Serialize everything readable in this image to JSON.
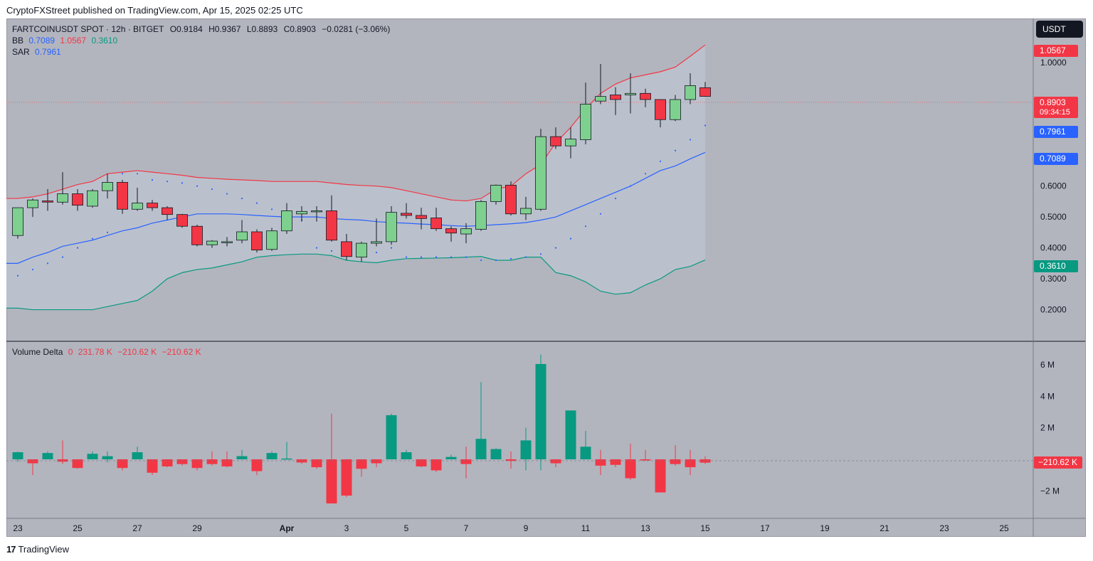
{
  "header": {
    "published": "CryptoFXStreet published on TradingView.com, Apr 15, 2025 02:25 UTC"
  },
  "legend": {
    "symbol": "FARTCOINUSDT SPOT · 12h · BITGET",
    "open": "O0.9184",
    "high": "H0.9367",
    "low": "L0.8893",
    "close": "C0.8903",
    "change": "−0.0281 (−3.06%)",
    "bb_label": "BB",
    "bb_mid": "0.7089",
    "bb_upper": "1.0567",
    "bb_lower": "0.3610",
    "sar_label": "SAR",
    "sar_value": "0.7961",
    "vd_label": "Volume Delta",
    "vd_v1": "0",
    "vd_v2": "231.78 K",
    "vd_v3": "−210.62 K",
    "vd_v4": "−210.62 K"
  },
  "currency": "USDT",
  "price_tags": {
    "upper": "1.0567",
    "last": "0.8903",
    "countdown": "09:34:15",
    "sar": "0.7961",
    "mid": "0.7089",
    "lower": "0.3610",
    "vd": "−210.62 K"
  },
  "colors": {
    "bull": "#7ed08f",
    "bear": "#f23645",
    "delta_up": "#089981",
    "delta_down": "#f23645",
    "bb_upper": "#f23645",
    "bb_mid": "#2962ff",
    "bb_lower": "#089981",
    "sar": "#2962ff",
    "bg": "#b2b5be",
    "band_fill": "#bcc3cf"
  },
  "footer": {
    "brand": "TradingView",
    "logo": "17"
  },
  "chart_data": {
    "type": "candlestick",
    "title": "FARTCOINUSDT SPOT · 12h · BITGET",
    "price_axis": {
      "ticks": [
        0.2,
        0.3,
        0.4,
        0.5,
        0.6,
        1.0
      ],
      "labels": [
        "0.2000",
        "0.3000",
        "0.4000",
        "0.5000",
        "0.6000",
        "1.0000"
      ],
      "range": [
        0.1,
        1.14
      ]
    },
    "volume_axis": {
      "ticks": [
        6000000,
        4000000,
        2000000,
        -2000000
      ],
      "labels": [
        "6 M",
        "4 M",
        "2 M",
        "−2 M"
      ],
      "range": [
        -3700000,
        7400000
      ]
    },
    "x_ticks": [
      {
        "i": 0,
        "label": "23"
      },
      {
        "i": 4,
        "label": "25"
      },
      {
        "i": 8,
        "label": "27"
      },
      {
        "i": 12,
        "label": "29"
      },
      {
        "i": 18,
        "label": "Apr"
      },
      {
        "i": 22,
        "label": "3"
      },
      {
        "i": 26,
        "label": "5"
      },
      {
        "i": 30,
        "label": "7"
      },
      {
        "i": 34,
        "label": "9"
      },
      {
        "i": 38,
        "label": "11"
      },
      {
        "i": 42,
        "label": "13"
      },
      {
        "i": 46,
        "label": "15"
      },
      {
        "i": 50,
        "label": "17"
      },
      {
        "i": 54,
        "label": "19"
      },
      {
        "i": 58,
        "label": "21"
      },
      {
        "i": 62,
        "label": "23"
      },
      {
        "i": 66,
        "label": "25"
      }
    ],
    "candles": [
      {
        "o": 0.44,
        "h": 0.53,
        "l": 0.43,
        "c": 0.53
      },
      {
        "o": 0.53,
        "h": 0.56,
        "l": 0.5,
        "c": 0.555
      },
      {
        "o": 0.552,
        "h": 0.59,
        "l": 0.52,
        "c": 0.548
      },
      {
        "o": 0.548,
        "h": 0.645,
        "l": 0.54,
        "c": 0.575
      },
      {
        "o": 0.575,
        "h": 0.59,
        "l": 0.52,
        "c": 0.538
      },
      {
        "o": 0.535,
        "h": 0.59,
        "l": 0.53,
        "c": 0.585
      },
      {
        "o": 0.585,
        "h": 0.64,
        "l": 0.56,
        "c": 0.612
      },
      {
        "o": 0.612,
        "h": 0.62,
        "l": 0.51,
        "c": 0.525
      },
      {
        "o": 0.525,
        "h": 0.595,
        "l": 0.52,
        "c": 0.545
      },
      {
        "o": 0.545,
        "h": 0.555,
        "l": 0.52,
        "c": 0.53
      },
      {
        "o": 0.53,
        "h": 0.535,
        "l": 0.49,
        "c": 0.508
      },
      {
        "o": 0.508,
        "h": 0.51,
        "l": 0.465,
        "c": 0.47
      },
      {
        "o": 0.47,
        "h": 0.475,
        "l": 0.405,
        "c": 0.41
      },
      {
        "o": 0.41,
        "h": 0.425,
        "l": 0.4,
        "c": 0.422
      },
      {
        "o": 0.417,
        "h": 0.435,
        "l": 0.405,
        "c": 0.42
      },
      {
        "o": 0.425,
        "h": 0.49,
        "l": 0.415,
        "c": 0.452
      },
      {
        "o": 0.452,
        "h": 0.46,
        "l": 0.385,
        "c": 0.393
      },
      {
        "o": 0.395,
        "h": 0.465,
        "l": 0.39,
        "c": 0.455
      },
      {
        "o": 0.455,
        "h": 0.545,
        "l": 0.445,
        "c": 0.52
      },
      {
        "o": 0.51,
        "h": 0.535,
        "l": 0.485,
        "c": 0.518
      },
      {
        "o": 0.519,
        "h": 0.535,
        "l": 0.485,
        "c": 0.52
      },
      {
        "o": 0.52,
        "h": 0.57,
        "l": 0.42,
        "c": 0.425
      },
      {
        "o": 0.42,
        "h": 0.445,
        "l": 0.36,
        "c": 0.372
      },
      {
        "o": 0.37,
        "h": 0.42,
        "l": 0.355,
        "c": 0.415
      },
      {
        "o": 0.415,
        "h": 0.495,
        "l": 0.405,
        "c": 0.42
      },
      {
        "o": 0.42,
        "h": 0.535,
        "l": 0.41,
        "c": 0.515
      },
      {
        "o": 0.512,
        "h": 0.545,
        "l": 0.495,
        "c": 0.505
      },
      {
        "o": 0.505,
        "h": 0.53,
        "l": 0.46,
        "c": 0.495
      },
      {
        "o": 0.497,
        "h": 0.53,
        "l": 0.455,
        "c": 0.462
      },
      {
        "o": 0.462,
        "h": 0.47,
        "l": 0.42,
        "c": 0.448
      },
      {
        "o": 0.445,
        "h": 0.48,
        "l": 0.415,
        "c": 0.462
      },
      {
        "o": 0.46,
        "h": 0.555,
        "l": 0.455,
        "c": 0.55
      },
      {
        "o": 0.55,
        "h": 0.605,
        "l": 0.54,
        "c": 0.603
      },
      {
        "o": 0.603,
        "h": 0.615,
        "l": 0.505,
        "c": 0.51
      },
      {
        "o": 0.51,
        "h": 0.565,
        "l": 0.49,
        "c": 0.528
      },
      {
        "o": 0.525,
        "h": 0.785,
        "l": 0.52,
        "c": 0.76
      },
      {
        "o": 0.76,
        "h": 0.79,
        "l": 0.72,
        "c": 0.73
      },
      {
        "o": 0.73,
        "h": 0.79,
        "l": 0.69,
        "c": 0.752
      },
      {
        "o": 0.75,
        "h": 0.935,
        "l": 0.735,
        "c": 0.865
      },
      {
        "o": 0.875,
        "h": 0.995,
        "l": 0.865,
        "c": 0.89
      },
      {
        "o": 0.895,
        "h": 0.92,
        "l": 0.83,
        "c": 0.88
      },
      {
        "o": 0.895,
        "h": 0.965,
        "l": 0.835,
        "c": 0.9
      },
      {
        "o": 0.9,
        "h": 0.915,
        "l": 0.855,
        "c": 0.88
      },
      {
        "o": 0.88,
        "h": 0.88,
        "l": 0.79,
        "c": 0.815
      },
      {
        "o": 0.815,
        "h": 0.895,
        "l": 0.81,
        "c": 0.88
      },
      {
        "o": 0.88,
        "h": 0.965,
        "l": 0.865,
        "c": 0.925
      },
      {
        "o": 0.9184,
        "h": 0.9367,
        "l": 0.8893,
        "c": 0.8903
      }
    ],
    "bb_upper": [
      0.56,
      0.565,
      0.575,
      0.59,
      0.605,
      0.615,
      0.64,
      0.645,
      0.65,
      0.645,
      0.64,
      0.635,
      0.628,
      0.625,
      0.622,
      0.62,
      0.618,
      0.615,
      0.615,
      0.615,
      0.615,
      0.61,
      0.605,
      0.602,
      0.6,
      0.595,
      0.585,
      0.575,
      0.565,
      0.555,
      0.552,
      0.56,
      0.59,
      0.6,
      0.64,
      0.67,
      0.74,
      0.79,
      0.85,
      0.9,
      0.93,
      0.95,
      0.96,
      0.97,
      0.985,
      1.02,
      1.0567
    ],
    "bb_mid": [
      0.35,
      0.37,
      0.385,
      0.405,
      0.415,
      0.425,
      0.44,
      0.455,
      0.465,
      0.48,
      0.49,
      0.5,
      0.51,
      0.51,
      0.51,
      0.508,
      0.505,
      0.502,
      0.5,
      0.5,
      0.5,
      0.495,
      0.492,
      0.49,
      0.485,
      0.482,
      0.48,
      0.477,
      0.475,
      0.472,
      0.47,
      0.472,
      0.475,
      0.478,
      0.482,
      0.49,
      0.5,
      0.52,
      0.54,
      0.56,
      0.58,
      0.6,
      0.625,
      0.65,
      0.665,
      0.688,
      0.7089
    ],
    "bb_lower": [
      0.205,
      0.2,
      0.2,
      0.2,
      0.2,
      0.2,
      0.21,
      0.22,
      0.23,
      0.26,
      0.3,
      0.32,
      0.33,
      0.335,
      0.345,
      0.355,
      0.37,
      0.375,
      0.378,
      0.38,
      0.38,
      0.375,
      0.36,
      0.355,
      0.352,
      0.36,
      0.365,
      0.366,
      0.367,
      0.368,
      0.37,
      0.372,
      0.36,
      0.36,
      0.37,
      0.37,
      0.32,
      0.31,
      0.29,
      0.26,
      0.25,
      0.255,
      0.28,
      0.3,
      0.33,
      0.34,
      0.361
    ],
    "sar": [
      0.31,
      0.33,
      0.35,
      0.37,
      0.4,
      0.43,
      0.45,
      0.64,
      0.64,
      0.62,
      0.615,
      0.61,
      0.6,
      0.59,
      0.575,
      0.56,
      0.545,
      0.525,
      0.51,
      0.49,
      0.4,
      0.39,
      0.39,
      0.38,
      0.385,
      0.4,
      0.37,
      0.37,
      0.37,
      0.37,
      0.37,
      0.36,
      0.36,
      0.365,
      0.37,
      0.38,
      0.4,
      0.43,
      0.47,
      0.51,
      0.56,
      0.6,
      0.64,
      0.68,
      0.715,
      0.75,
      0.7961
    ],
    "volume_delta": [
      450000,
      -250000,
      400000,
      -150000,
      -550000,
      350000,
      200000,
      -550000,
      450000,
      -850000,
      -450000,
      -300000,
      -550000,
      -300000,
      -450000,
      200000,
      -750000,
      400000,
      50000,
      -200000,
      -500000,
      -2800000,
      -2300000,
      -600000,
      -250000,
      2800000,
      450000,
      -450000,
      -700000,
      150000,
      -300000,
      1300000,
      650000,
      -100000,
      1200000,
      6050000,
      -250000,
      3100000,
      800000,
      -400000,
      -350000,
      -1200000,
      -50000,
      -2100000,
      -300000,
      -500000,
      -210620
    ],
    "volume_delta_wick_high": [
      500000,
      0,
      500000,
      1200000,
      0,
      500000,
      500000,
      0,
      800000,
      0,
      0,
      0,
      0,
      500000,
      500000,
      600000,
      0,
      500000,
      1100000,
      0,
      0,
      2900000,
      0,
      0,
      0,
      2900000,
      600000,
      0,
      0,
      300000,
      800000,
      4900000,
      700000,
      500000,
      2000000,
      6650000,
      0,
      3100000,
      1800000,
      600000,
      0,
      1000000,
      600000,
      0,
      900000,
      600000,
      200000
    ],
    "volume_delta_wick_low": [
      -150000,
      -1000000,
      0,
      -300000,
      -600000,
      0,
      -200000,
      -700000,
      0,
      -1000000,
      -500000,
      -400000,
      -700000,
      -400000,
      -500000,
      0,
      -1000000,
      0,
      0,
      -300000,
      -600000,
      -2800000,
      -2400000,
      -1100000,
      -500000,
      0,
      0,
      -500000,
      -800000,
      0,
      -1200000,
      0,
      0,
      -600000,
      -700000,
      -700000,
      -500000,
      0,
      0,
      -1000000,
      -500000,
      -1300000,
      -100000,
      -2100000,
      -400000,
      -1000000,
      -300000
    ]
  }
}
